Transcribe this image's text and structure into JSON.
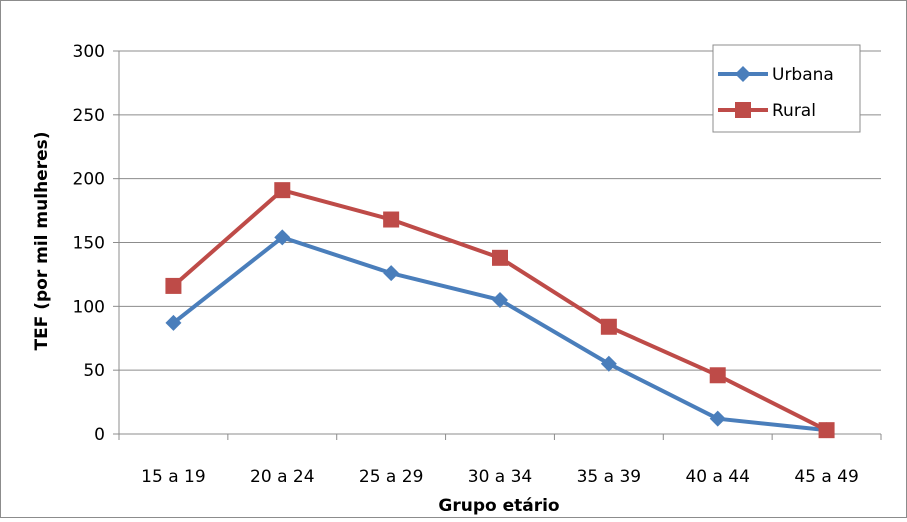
{
  "chart_data": {
    "type": "line",
    "title": "",
    "xlabel": "Grupo etário",
    "ylabel": "TEF (por mil mulheres)",
    "categories": [
      "15 a 19",
      "20 a 24",
      "25 a 29",
      "30 a 34",
      "35 a 39",
      "40 a 44",
      "45 a 49"
    ],
    "ylim": [
      0,
      300
    ],
    "yticks": [
      0,
      50,
      100,
      150,
      200,
      250,
      300
    ],
    "grid": true,
    "legend_position": "top-right",
    "series": [
      {
        "name": "Urbana",
        "color": "#4a7ebb",
        "marker": "diamond",
        "values": [
          87,
          154,
          126,
          105,
          55,
          12,
          3
        ]
      },
      {
        "name": "Rural",
        "color": "#be4b48",
        "marker": "square",
        "values": [
          116,
          191,
          168,
          138,
          84,
          46,
          3
        ]
      }
    ]
  }
}
